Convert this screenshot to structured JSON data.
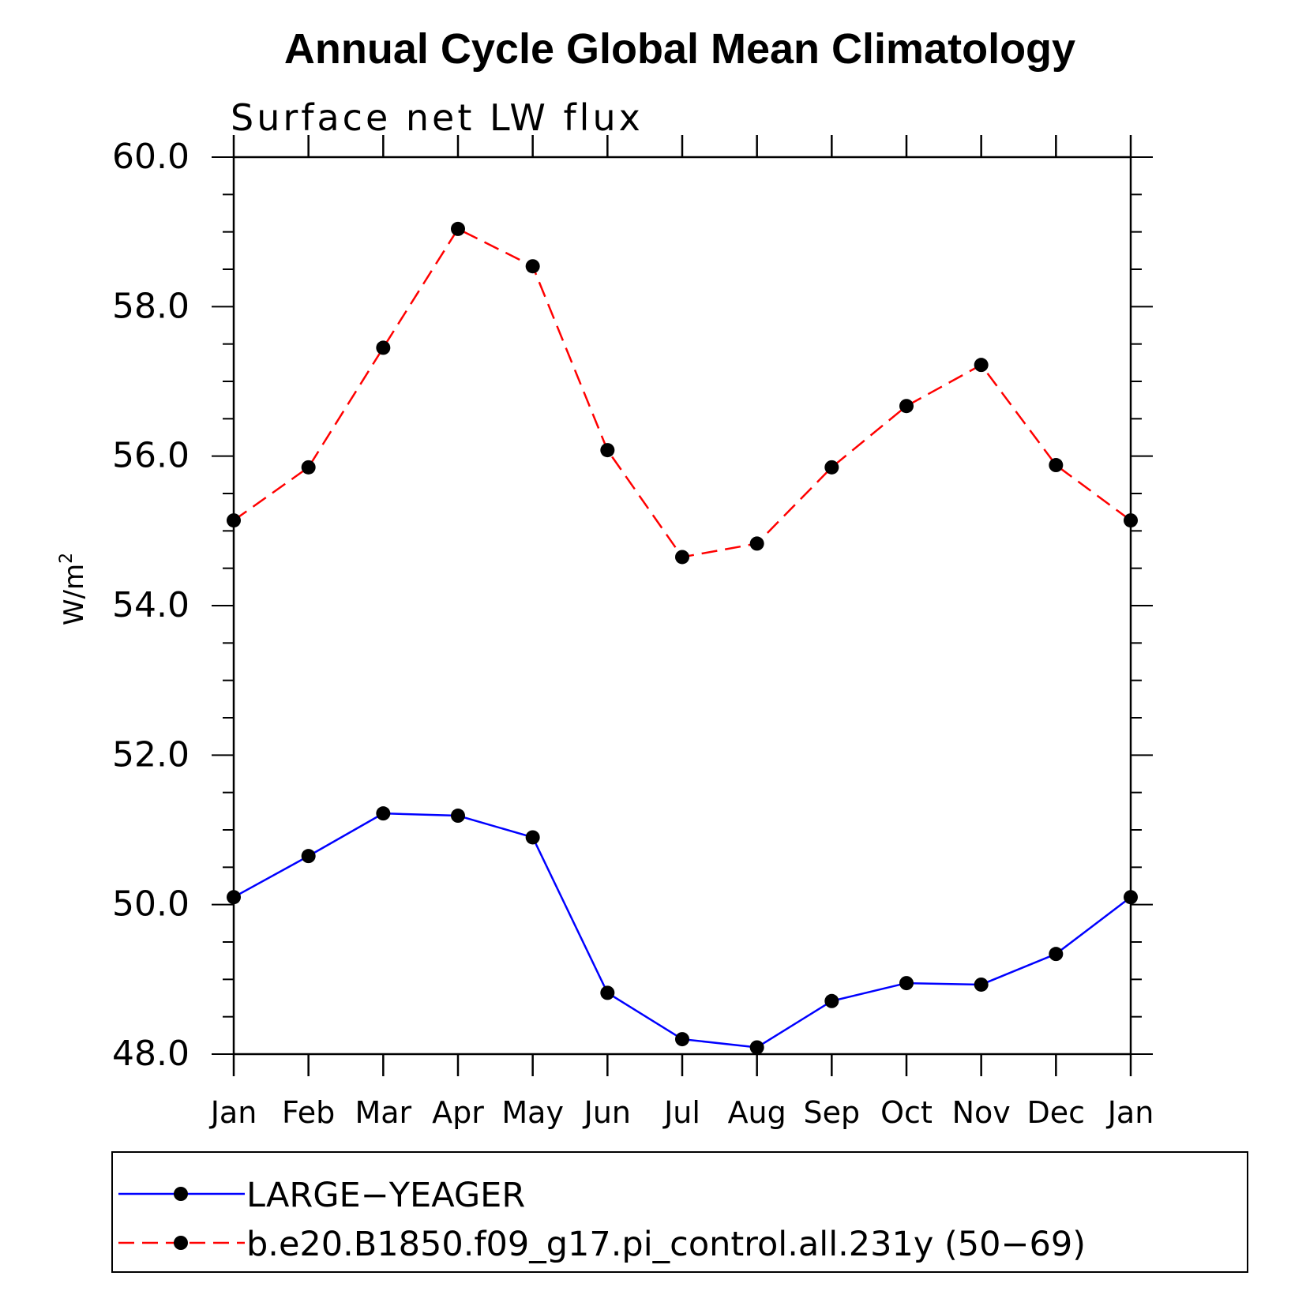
{
  "chart_data": {
    "type": "line",
    "title": "Annual Cycle Global Mean Climatology",
    "subtitle": "Surface net LW flux",
    "xlabel": "",
    "ylabel": "W/m",
    "ylabel_sup": "2",
    "categories": [
      "Jan",
      "Feb",
      "Mar",
      "Apr",
      "May",
      "Jun",
      "Jul",
      "Aug",
      "Sep",
      "Oct",
      "Nov",
      "Dec",
      "Jan"
    ],
    "ylim": [
      48.0,
      60.0
    ],
    "yticks": [
      "48.0",
      "50.0",
      "52.0",
      "54.0",
      "56.0",
      "58.0",
      "60.0"
    ],
    "grid": false,
    "legend_position": "bottom",
    "series": [
      {
        "name": "LARGE−YEAGER",
        "color": "#0000ff",
        "style": "solid",
        "marker": "circle",
        "values": [
          50.1,
          50.65,
          51.22,
          51.19,
          50.9,
          48.82,
          48.2,
          48.09,
          48.71,
          48.95,
          48.93,
          49.34,
          50.1
        ]
      },
      {
        "name": "b.e20.B1850.f09_g17.pi_control.all.231y (50−69)",
        "color": "#ff0000",
        "style": "dashed",
        "marker": "circle",
        "values": [
          55.14,
          55.85,
          57.45,
          59.04,
          58.54,
          56.08,
          54.65,
          54.83,
          55.85,
          56.67,
          57.22,
          55.88,
          55.14
        ]
      }
    ]
  }
}
